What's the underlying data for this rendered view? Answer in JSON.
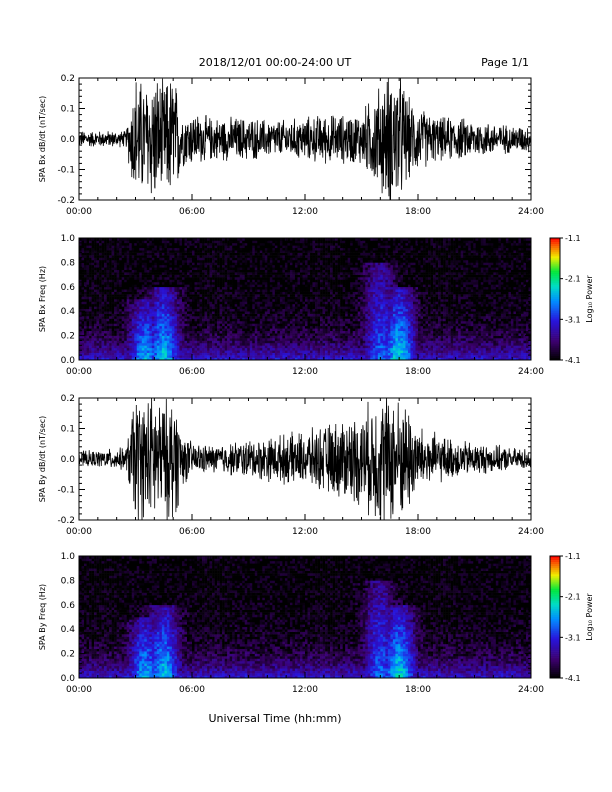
{
  "header": {
    "title": "2018/12/01  00:00-24:00 UT",
    "page": "Page 1/1"
  },
  "footer": {
    "xlabel": "Universal Time (hh:mm)"
  },
  "chart_data": [
    {
      "type": "line",
      "ylabel": "SPA Bx dB/dt (nT/sec)",
      "xlim": [
        0,
        24
      ],
      "ylim": [
        -0.2,
        0.2
      ],
      "x_ticks": [
        "00:00",
        "06:00",
        "12:00",
        "18:00",
        "24:00"
      ],
      "y_ticks": [
        "-0.2",
        "-0.1",
        "0.0",
        "0.1",
        "0.2"
      ],
      "series": [
        {
          "x": [
            0,
            1,
            2,
            2.5,
            3,
            3.5,
            4,
            4.5,
            5,
            5.5,
            6,
            7,
            8,
            9,
            10,
            11,
            12,
            13,
            14,
            15,
            16,
            16.5,
            17,
            17.5,
            18,
            19,
            20,
            21,
            22,
            23,
            24
          ],
          "envelope": [
            0.03,
            0.03,
            0.03,
            0.03,
            0.25,
            0.2,
            0.25,
            0.2,
            0.25,
            0.1,
            0.1,
            0.08,
            0.08,
            0.08,
            0.07,
            0.07,
            0.08,
            0.09,
            0.09,
            0.1,
            0.2,
            0.25,
            0.25,
            0.15,
            0.12,
            0.08,
            0.08,
            0.07,
            0.06,
            0.05,
            0.05
          ]
        }
      ]
    },
    {
      "type": "heatmap",
      "ylabel": "SPA Bx Freq (Hz)",
      "xlim": [
        0,
        24
      ],
      "ylim": [
        0.0,
        1.0
      ],
      "x_ticks": [
        "00:00",
        "06:00",
        "12:00",
        "18:00",
        "24:00"
      ],
      "y_ticks": [
        "0.0",
        "0.2",
        "0.4",
        "0.6",
        "0.8",
        "1.0"
      ],
      "colorbar": {
        "label": "Log₁₀ Power",
        "ticks": [
          "-1.1",
          "-2.1",
          "-3.1",
          "-4.1"
        ],
        "range": [
          -4.1,
          -1.1
        ]
      },
      "hotspots": [
        {
          "t": 3.5,
          "f_max": 0.5,
          "level": -2.5
        },
        {
          "t": 4.5,
          "f_max": 0.6,
          "level": -2.4
        },
        {
          "t": 16,
          "f_max": 0.8,
          "level": -2.8
        },
        {
          "t": 17,
          "f_max": 0.6,
          "level": -2.3
        }
      ]
    },
    {
      "type": "line",
      "ylabel": "SPA By dB/dt (nT/sec)",
      "xlim": [
        0,
        24
      ],
      "ylim": [
        -0.2,
        0.2
      ],
      "x_ticks": [
        "00:00",
        "06:00",
        "12:00",
        "18:00",
        "24:00"
      ],
      "y_ticks": [
        "-0.2",
        "-0.1",
        "0.0",
        "0.1",
        "0.2"
      ],
      "series": [
        {
          "x": [
            0,
            1,
            2,
            2.5,
            3,
            3.5,
            4,
            4.5,
            5,
            5.5,
            6,
            7,
            8,
            9,
            10,
            11,
            12,
            13,
            14,
            15,
            16,
            16.5,
            17,
            17.5,
            18,
            19,
            20,
            21,
            22,
            23,
            24
          ],
          "envelope": [
            0.03,
            0.03,
            0.04,
            0.04,
            0.25,
            0.22,
            0.25,
            0.2,
            0.25,
            0.1,
            0.06,
            0.05,
            0.06,
            0.07,
            0.08,
            0.09,
            0.1,
            0.12,
            0.15,
            0.17,
            0.25,
            0.25,
            0.22,
            0.2,
            0.12,
            0.09,
            0.07,
            0.06,
            0.05,
            0.04,
            0.04
          ]
        }
      ]
    },
    {
      "type": "heatmap",
      "ylabel": "SPA By Freq (Hz)",
      "xlim": [
        0,
        24
      ],
      "ylim": [
        0.0,
        1.0
      ],
      "x_ticks": [
        "00:00",
        "06:00",
        "12:00",
        "18:00",
        "24:00"
      ],
      "y_ticks": [
        "0.0",
        "0.2",
        "0.4",
        "0.6",
        "0.8",
        "1.0"
      ],
      "colorbar": {
        "label": "Log₁₀ Power",
        "ticks": [
          "-1.1",
          "-2.1",
          "-3.1",
          "-4.1"
        ],
        "range": [
          -4.1,
          -1.1
        ]
      },
      "hotspots": [
        {
          "t": 3.5,
          "f_max": 0.5,
          "level": -2.5
        },
        {
          "t": 4.5,
          "f_max": 0.6,
          "level": -2.4
        },
        {
          "t": 16,
          "f_max": 0.8,
          "level": -2.8
        },
        {
          "t": 17,
          "f_max": 0.6,
          "level": -2.3
        }
      ]
    }
  ]
}
